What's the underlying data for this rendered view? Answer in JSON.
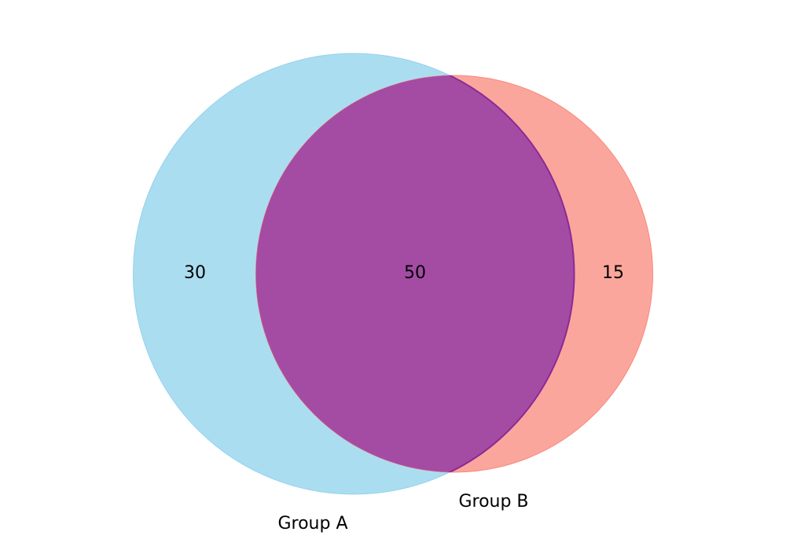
{
  "venn": {
    "sets": [
      {
        "label": "Group A",
        "color": "#87ceeb"
      },
      {
        "label": "Group B",
        "color": "#fa8072"
      }
    ],
    "regions": {
      "a_only": "30",
      "intersection": "50",
      "b_only": "15"
    },
    "intersection_color": "#a44ca4"
  }
}
